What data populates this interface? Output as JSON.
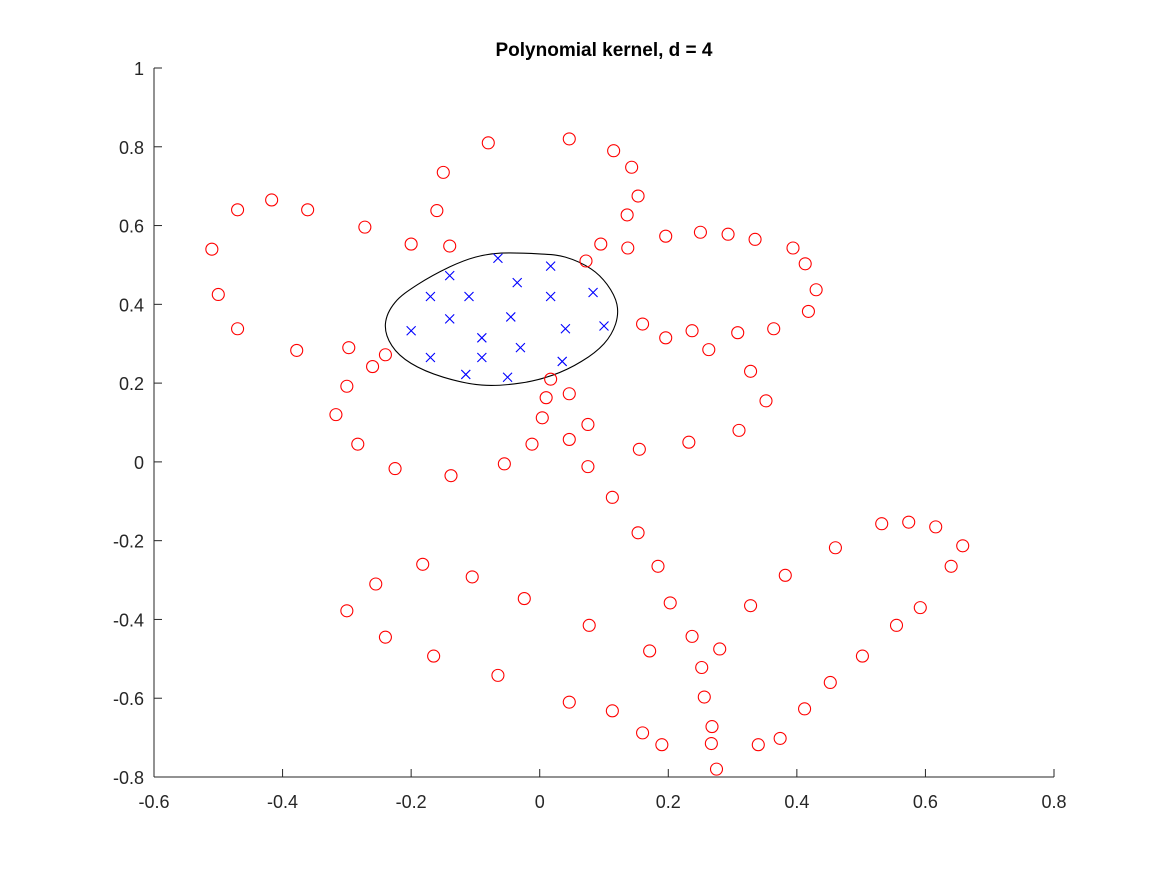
{
  "chart_data": {
    "type": "scatter",
    "title": "Polynomial kernel, d = 4",
    "xlabel": "",
    "ylabel": "",
    "xlim": [
      -0.6,
      0.8
    ],
    "ylim": [
      -0.8,
      1.0
    ],
    "xticks": [
      -0.6,
      -0.4,
      -0.2,
      0,
      0.2,
      0.4,
      0.6,
      0.8
    ],
    "xtick_labels": [
      "-0.6",
      "-0.4",
      "-0.2",
      "0",
      "0.2",
      "0.4",
      "0.6",
      "0.8"
    ],
    "yticks": [
      -0.8,
      -0.6,
      -0.4,
      -0.2,
      0,
      0.2,
      0.4,
      0.6,
      0.8,
      1.0
    ],
    "ytick_labels": [
      "-0.8",
      "-0.6",
      "-0.4",
      "-0.2",
      "0",
      "0.2",
      "0.4",
      "0.6",
      "0.8",
      "1"
    ],
    "grid": false,
    "colors": {
      "negative": "#ff0000",
      "positive": "#0000ff",
      "boundary": "#000000",
      "axes": "#262626"
    },
    "series": [
      {
        "marker": "o",
        "points": [
          [
            -0.47,
            0.64
          ],
          [
            -0.417,
            0.665
          ],
          [
            -0.361,
            0.64
          ],
          [
            -0.51,
            0.54
          ],
          [
            -0.5,
            0.425
          ],
          [
            -0.47,
            0.338
          ],
          [
            -0.378,
            0.283
          ],
          [
            -0.272,
            0.596
          ],
          [
            -0.2,
            0.553
          ],
          [
            -0.15,
            0.735
          ],
          [
            -0.16,
            0.638
          ],
          [
            -0.14,
            0.548
          ],
          [
            -0.08,
            0.81
          ],
          [
            0.046,
            0.82
          ],
          [
            0.115,
            0.79
          ],
          [
            0.143,
            0.748
          ],
          [
            0.153,
            0.675
          ],
          [
            0.136,
            0.627
          ],
          [
            0.137,
            0.543
          ],
          [
            0.095,
            0.553
          ],
          [
            0.072,
            0.51
          ],
          [
            -0.297,
            0.29
          ],
          [
            -0.26,
            0.242
          ],
          [
            -0.3,
            0.192
          ],
          [
            -0.317,
            0.12
          ],
          [
            -0.283,
            0.045
          ],
          [
            -0.225,
            -0.017
          ],
          [
            -0.138,
            -0.035
          ],
          [
            -0.055,
            -0.005
          ],
          [
            -0.012,
            0.045
          ],
          [
            0.004,
            0.112
          ],
          [
            0.01,
            0.163
          ],
          [
            0.017,
            0.21
          ],
          [
            0.046,
            0.173
          ],
          [
            0.046,
            0.057
          ],
          [
            0.075,
            0.095
          ],
          [
            0.075,
            -0.012
          ],
          [
            0.155,
            0.032
          ],
          [
            0.16,
            0.35
          ],
          [
            0.196,
            0.573
          ],
          [
            0.25,
            0.583
          ],
          [
            0.293,
            0.578
          ],
          [
            0.335,
            0.565
          ],
          [
            0.394,
            0.543
          ],
          [
            0.413,
            0.503
          ],
          [
            0.43,
            0.437
          ],
          [
            0.418,
            0.382
          ],
          [
            0.364,
            0.338
          ],
          [
            0.308,
            0.328
          ],
          [
            0.237,
            0.333
          ],
          [
            0.196,
            0.315
          ],
          [
            0.263,
            0.285
          ],
          [
            0.328,
            0.23
          ],
          [
            0.352,
            0.155
          ],
          [
            0.31,
            0.08
          ],
          [
            0.232,
            0.05
          ],
          [
            -0.24,
            0.272
          ],
          [
            0.113,
            -0.09
          ],
          [
            0.153,
            -0.18
          ],
          [
            0.184,
            -0.265
          ],
          [
            0.203,
            -0.358
          ],
          [
            0.171,
            -0.48
          ],
          [
            0.16,
            -0.688
          ],
          [
            0.19,
            -0.718
          ],
          [
            0.237,
            -0.443
          ],
          [
            0.28,
            -0.475
          ],
          [
            0.252,
            -0.522
          ],
          [
            0.256,
            -0.597
          ],
          [
            0.268,
            -0.672
          ],
          [
            0.267,
            -0.715
          ],
          [
            0.275,
            -0.78
          ],
          [
            0.34,
            -0.718
          ],
          [
            0.374,
            -0.702
          ],
          [
            0.412,
            -0.627
          ],
          [
            0.452,
            -0.56
          ],
          [
            0.502,
            -0.493
          ],
          [
            0.555,
            -0.415
          ],
          [
            0.592,
            -0.37
          ],
          [
            0.64,
            -0.265
          ],
          [
            0.658,
            -0.213
          ],
          [
            0.616,
            -0.165
          ],
          [
            0.574,
            -0.153
          ],
          [
            0.532,
            -0.157
          ],
          [
            0.46,
            -0.218
          ],
          [
            0.382,
            -0.288
          ],
          [
            0.328,
            -0.365
          ],
          [
            0.077,
            -0.415
          ],
          [
            0.113,
            -0.632
          ],
          [
            0.046,
            -0.61
          ],
          [
            -0.065,
            -0.542
          ],
          [
            -0.165,
            -0.493
          ],
          [
            -0.24,
            -0.445
          ],
          [
            -0.3,
            -0.378
          ],
          [
            -0.255,
            -0.31
          ],
          [
            -0.182,
            -0.26
          ],
          [
            -0.105,
            -0.292
          ],
          [
            -0.024,
            -0.347
          ]
        ]
      },
      {
        "marker": "x",
        "points": [
          [
            -0.14,
            0.473
          ],
          [
            -0.065,
            0.517
          ],
          [
            0.017,
            0.497
          ],
          [
            -0.17,
            0.42
          ],
          [
            -0.11,
            0.42
          ],
          [
            -0.035,
            0.455
          ],
          [
            0.017,
            0.42
          ],
          [
            0.083,
            0.43
          ],
          [
            -0.2,
            0.333
          ],
          [
            -0.14,
            0.363
          ],
          [
            -0.09,
            0.315
          ],
          [
            -0.045,
            0.368
          ],
          [
            0.04,
            0.338
          ],
          [
            0.1,
            0.345
          ],
          [
            -0.17,
            0.265
          ],
          [
            -0.09,
            0.265
          ],
          [
            -0.03,
            0.29
          ],
          [
            0.035,
            0.255
          ],
          [
            -0.115,
            0.222
          ],
          [
            -0.05,
            0.215
          ]
        ]
      },
      {
        "marker": "line",
        "points": [
          [
            -0.06,
            0.53
          ],
          [
            0.0,
            0.528
          ],
          [
            0.04,
            0.52
          ],
          [
            0.08,
            0.49
          ],
          [
            0.105,
            0.45
          ],
          [
            0.12,
            0.4
          ],
          [
            0.118,
            0.35
          ],
          [
            0.1,
            0.3
          ],
          [
            0.065,
            0.255
          ],
          [
            0.02,
            0.22
          ],
          [
            -0.03,
            0.2
          ],
          [
            -0.09,
            0.195
          ],
          [
            -0.15,
            0.215
          ],
          [
            -0.2,
            0.25
          ],
          [
            -0.23,
            0.295
          ],
          [
            -0.24,
            0.35
          ],
          [
            -0.225,
            0.405
          ],
          [
            -0.19,
            0.45
          ],
          [
            -0.14,
            0.495
          ],
          [
            -0.1,
            0.52
          ],
          [
            -0.06,
            0.53
          ]
        ]
      }
    ]
  }
}
